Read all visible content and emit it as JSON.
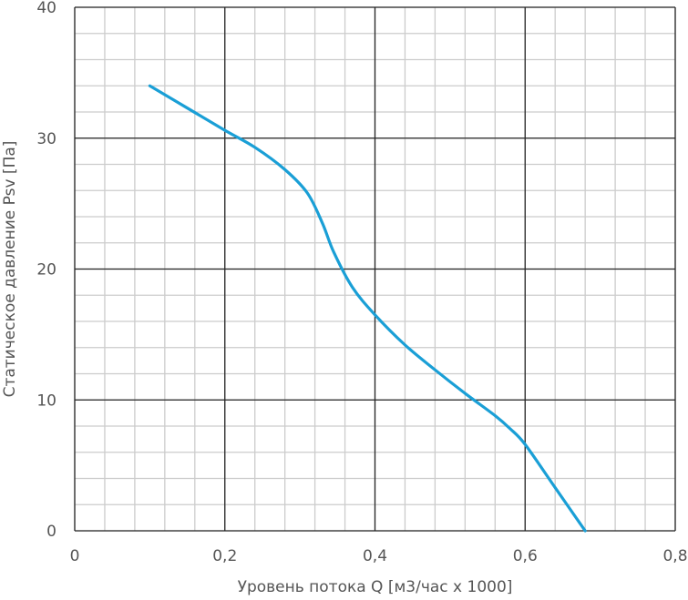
{
  "chart_data": {
    "type": "line",
    "xlabel": "Уровень потока Q [м3/час x 1000]",
    "ylabel": "Статическое давление Psv [Па]",
    "xlim": [
      0,
      0.8
    ],
    "ylim": [
      0,
      40
    ],
    "x_ticks": [
      0,
      0.2,
      0.4,
      0.6,
      0.8
    ],
    "x_tick_labels": [
      "0",
      "0,2",
      "0,4",
      "0,6",
      "0,8"
    ],
    "y_ticks": [
      0,
      10,
      20,
      30,
      40
    ],
    "y_tick_labels": [
      "0",
      "10",
      "20",
      "30",
      "40"
    ],
    "major_grid": true,
    "minor_grid": true,
    "series": [
      {
        "color": "#1a9fd6",
        "x": [
          0.1,
          0.15,
          0.2,
          0.24,
          0.28,
          0.31,
          0.33,
          0.345,
          0.37,
          0.4,
          0.44,
          0.48,
          0.52,
          0.56,
          0.58,
          0.6,
          0.64,
          0.68
        ],
        "y": [
          34.0,
          32.3,
          30.6,
          29.3,
          27.6,
          25.8,
          23.5,
          21.3,
          18.6,
          16.5,
          14.2,
          12.3,
          10.5,
          8.8,
          7.8,
          6.6,
          3.3,
          0.0
        ]
      }
    ]
  }
}
